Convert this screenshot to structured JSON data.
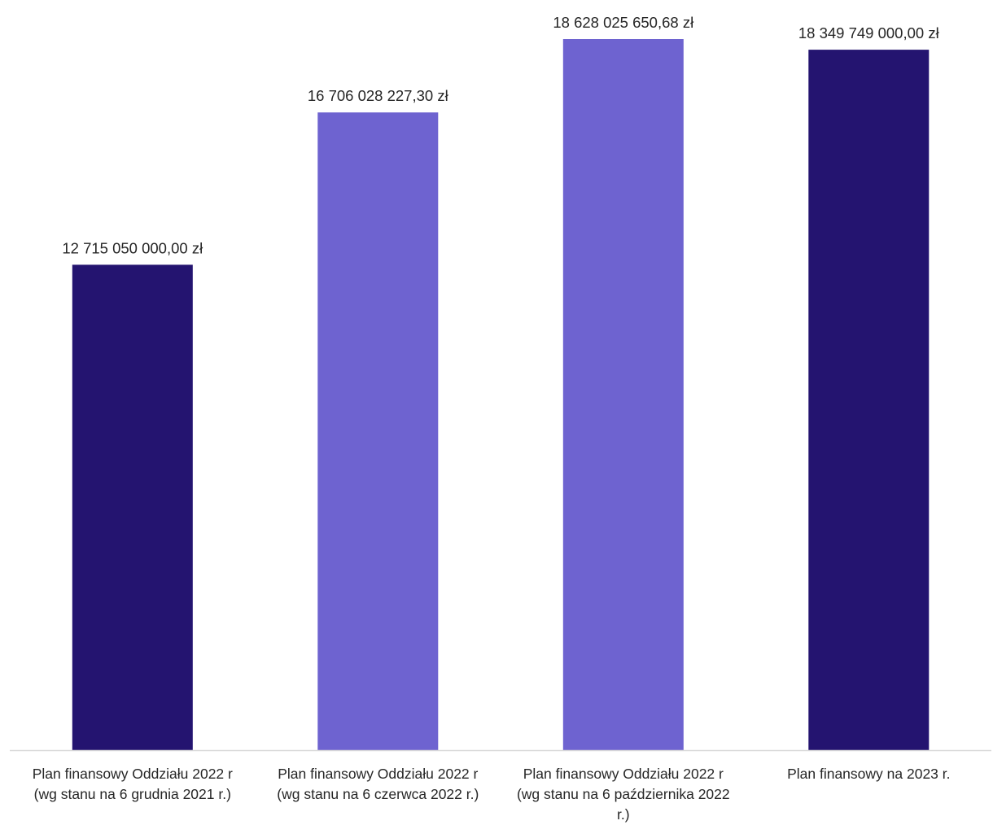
{
  "chart_data": {
    "type": "bar",
    "title": "",
    "xlabel": "",
    "ylabel": "",
    "ylim": [
      0,
      18628025650.68
    ],
    "grid": false,
    "legend": "none",
    "categories": [
      [
        "Plan finansowy Oddziału 2022 r",
        "(wg stanu na 6 grudnia 2021 r.)"
      ],
      [
        "Plan finansowy Oddziału 2022 r",
        "(wg stanu na 6 czerwca 2022 r.)"
      ],
      [
        "Plan finansowy Oddziału 2022 r",
        "(wg stanu na 6 października 2022",
        "r.)"
      ],
      [
        "Plan finansowy na 2023 r."
      ]
    ],
    "values": [
      12715050000.0,
      16706028227.3,
      18628025650.68,
      18349749000.0
    ],
    "data_labels": [
      "12 715 050 000,00 zł",
      "16 706 028 227,30 zł",
      "18 628 025 650,68 zł",
      "18 349 749 000,00 zł"
    ],
    "colors": [
      "#241470",
      "#6e63d0",
      "#6e63d0",
      "#241470"
    ],
    "axis_color": "#d9d9d9"
  }
}
